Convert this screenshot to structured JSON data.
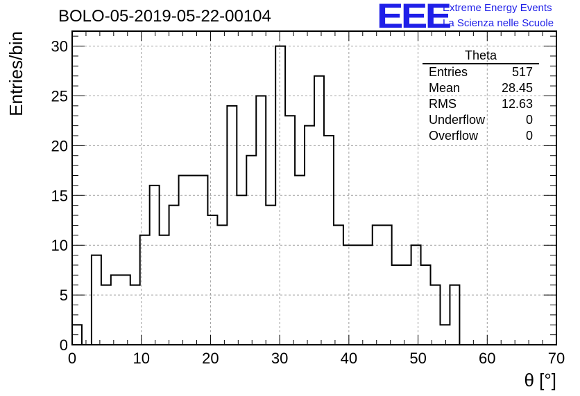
{
  "header": {
    "title": "BOLO-05-2019-05-22-00104",
    "logo_text": "EEE",
    "logo_line1": "Extreme Energy Events",
    "logo_line2": "La Scienza nelle Scuole"
  },
  "stats_box": {
    "name": "Theta",
    "rows": [
      {
        "label": "Entries",
        "value": "517"
      },
      {
        "label": "Mean",
        "value": "28.45"
      },
      {
        "label": "RMS",
        "value": "12.63"
      },
      {
        "label": "Underflow",
        "value": "0"
      },
      {
        "label": "Overflow",
        "value": "0"
      }
    ]
  },
  "colors": {
    "line": "#000000",
    "grid": "#a0a0a0",
    "logo": "#1f1fe8"
  },
  "chart_data": {
    "type": "histogram",
    "title": "BOLO-05-2019-05-22-00104",
    "xlabel": "θ [°]",
    "ylabel": "Entries/bin",
    "xlim": [
      0,
      70
    ],
    "ylim": [
      0,
      31.5
    ],
    "x_ticks": [
      0,
      10,
      20,
      30,
      40,
      50,
      60,
      70
    ],
    "y_ticks": [
      0,
      5,
      10,
      15,
      20,
      25,
      30
    ],
    "grid": true,
    "bin_width": 1.4,
    "bin_start": 0,
    "values": [
      2,
      0,
      9,
      6,
      7,
      7,
      6,
      11,
      16,
      11,
      14,
      17,
      17,
      17,
      13,
      12,
      24,
      15,
      19,
      25,
      14,
      30,
      23,
      17,
      22,
      27,
      21,
      12,
      10,
      10,
      10,
      12,
      12,
      8,
      8,
      10,
      8,
      6,
      2,
      6,
      0,
      0,
      0,
      0,
      0,
      0,
      0,
      0,
      0,
      0
    ]
  }
}
